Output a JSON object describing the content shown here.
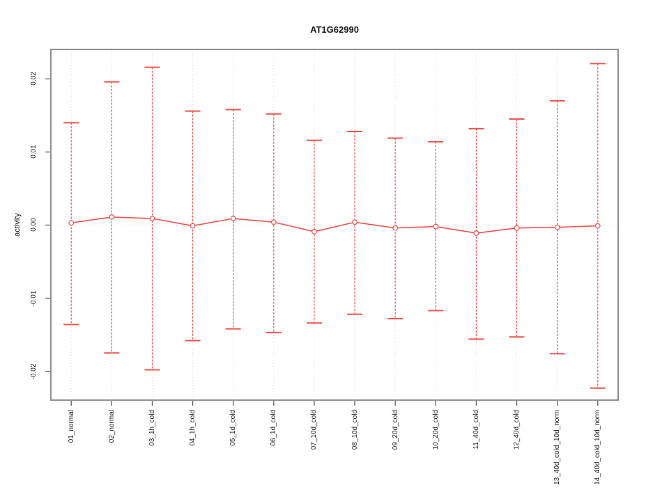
{
  "title": "AT1G62990",
  "y_axis_label": "activity",
  "colors": {
    "series": "#f0524d",
    "grid": "#d8d8d8",
    "zero_line": "#d8d8d8",
    "frame": "#8f8f8f",
    "tick": "#5a5a5a",
    "text": "#1a1a1a",
    "background": "#ffffff"
  },
  "chart_data": {
    "type": "line",
    "subtype": "means-with-error-bars",
    "title": "AT1G62990",
    "xlabel": "",
    "ylabel": "activity",
    "categories": [
      "01_normal",
      "02_normal",
      "03_1h_cold",
      "04_1h_cold",
      "05_1d_cold",
      "06_1d_cold",
      "07_10d_cold",
      "08_10d_cold",
      "09_20d_cold",
      "10_20d_cold",
      "11_40d_cold",
      "12_40d_cold",
      "13_40d_cold_10d_norm",
      "14_40d_cold_10d_norm"
    ],
    "series": [
      {
        "name": "mean",
        "values": [
          0.0003,
          0.0011,
          0.0009,
          -0.0001,
          0.0009,
          0.0004,
          -0.0009,
          0.0004,
          -0.0004,
          -0.0002,
          -0.0011,
          -0.0004,
          -0.0003,
          -0.0001
        ]
      },
      {
        "name": "upper_error",
        "values": [
          0.014,
          0.0196,
          0.0216,
          0.0156,
          0.0158,
          0.0152,
          0.0116,
          0.0128,
          0.0119,
          0.0114,
          0.0132,
          0.0145,
          0.017,
          0.0221
        ]
      },
      {
        "name": "lower_error",
        "values": [
          -0.0136,
          -0.0175,
          -0.0198,
          -0.0158,
          -0.0142,
          -0.0147,
          -0.0134,
          -0.0122,
          -0.0128,
          -0.0117,
          -0.0156,
          -0.0153,
          -0.0176,
          -0.0223
        ]
      }
    ],
    "ylim": [
      -0.02404,
      0.02413
    ],
    "yticks": {
      "values": [
        -0.02,
        -0.01,
        0,
        0.01,
        0.02
      ],
      "labels": [
        "-0.02",
        "-0.01",
        "0.00",
        "0.01",
        "0.02"
      ]
    },
    "grid": {
      "vertical_dotted_per_category": true,
      "horizontal_dotted_at_zero": true
    },
    "legend_position": "none",
    "marker": "open-circle"
  }
}
